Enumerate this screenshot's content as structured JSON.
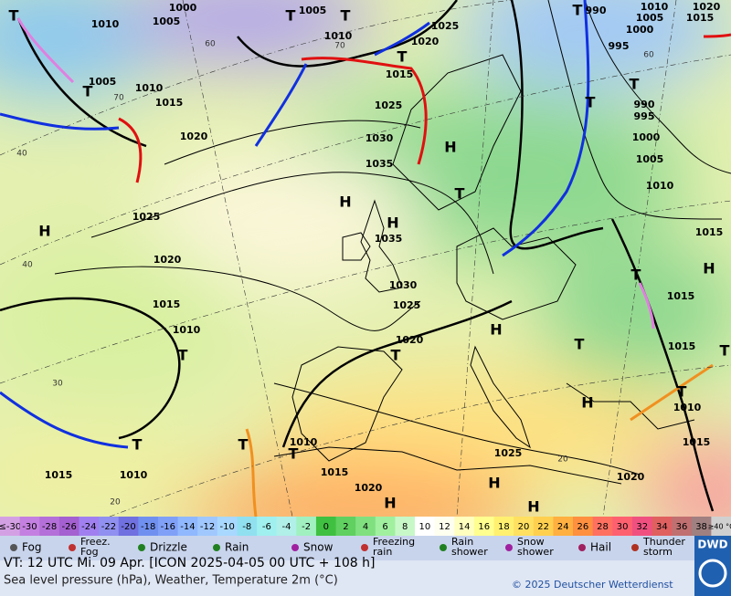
{
  "map": {
    "pressure_labels": [
      "1010",
      "1005",
      "1000",
      "1005",
      "1010",
      "1020",
      "1025",
      "1015",
      "1005",
      "1010",
      "1015",
      "1020",
      "1025",
      "1030",
      "1035",
      "1035",
      "1025",
      "1020",
      "1015",
      "1010",
      "1030",
      "1025",
      "1020",
      "1010",
      "1015",
      "1020",
      "1025",
      "1020",
      "1015",
      "1010",
      "1015",
      "1015",
      "1015",
      "1010",
      "1005",
      "1000",
      "995",
      "990",
      "995",
      "1000",
      "1005",
      "1010",
      "1015",
      "1020",
      "990",
      "1015",
      "1010"
    ],
    "temperature_labels": [
      "40",
      "40",
      "30",
      "20",
      "20",
      "70",
      "60",
      "60",
      "70"
    ],
    "highs": [
      "H",
      "H",
      "H",
      "H",
      "H",
      "H",
      "H",
      "H",
      "H",
      "H"
    ],
    "lows": [
      "T",
      "T",
      "T",
      "T",
      "T",
      "T",
      "T",
      "T",
      "T",
      "T",
      "T",
      "T",
      "T",
      "T",
      "T",
      "T",
      "T",
      "T"
    ]
  },
  "color_scale": {
    "labels": [
      "≤-30",
      "-30",
      "-28",
      "-26",
      "-24",
      "-22",
      "-20",
      "-18",
      "-16",
      "-14",
      "-12",
      "-10",
      "-8",
      "-6",
      "-4",
      "-2",
      "0",
      "2",
      "4",
      "6",
      "8",
      "10",
      "12",
      "14",
      "16",
      "18",
      "20",
      "22",
      "24",
      "26",
      "28",
      "30",
      "32",
      "34",
      "36",
      "38",
      "≥40 °C"
    ],
    "colors": [
      "#d4a0e4",
      "#c480e0",
      "#b470d8",
      "#a460d0",
      "#a080f0",
      "#9090f0",
      "#7070e0",
      "#7090f0",
      "#80a0f8",
      "#90b8ff",
      "#a0c8ff",
      "#a8d8ff",
      "#90e0f0",
      "#a0f0f0",
      "#b0f0e8",
      "#a0f0c0",
      "#40c040",
      "#60d060",
      "#80e080",
      "#a0f0a0",
      "#c8f8c8",
      "#ffffff",
      "#fffff0",
      "#ffffc0",
      "#ffff90",
      "#fff070",
      "#ffe060",
      "#ffd050",
      "#ffb040",
      "#ff9040",
      "#ff7060",
      "#ff6070",
      "#f05080",
      "#e06060",
      "#c07070",
      "#a08080",
      "#d0d0d0"
    ]
  },
  "weather_legend": [
    [
      "Fog"
    ],
    [
      "Freez.",
      "Fog"
    ],
    [
      "Drizzle"
    ],
    [
      "Rain"
    ],
    [
      "Snow"
    ],
    [
      "Freezing",
      "rain"
    ],
    [
      "Rain",
      "shower"
    ],
    [
      "Snow",
      "shower"
    ],
    [
      "Hail"
    ],
    [
      "Thunder",
      "storm"
    ]
  ],
  "footer": {
    "valid_time": "VT: 12 UTC Mi.  09 Apr. [ICON 2025-04-05  00 UTC + 108 h]",
    "description": "Sea level pressure (hPa), Weather, Temperature 2m (°C)",
    "copyright": "© 2025 Deutscher Wetterdienst",
    "logo": "DWD"
  }
}
